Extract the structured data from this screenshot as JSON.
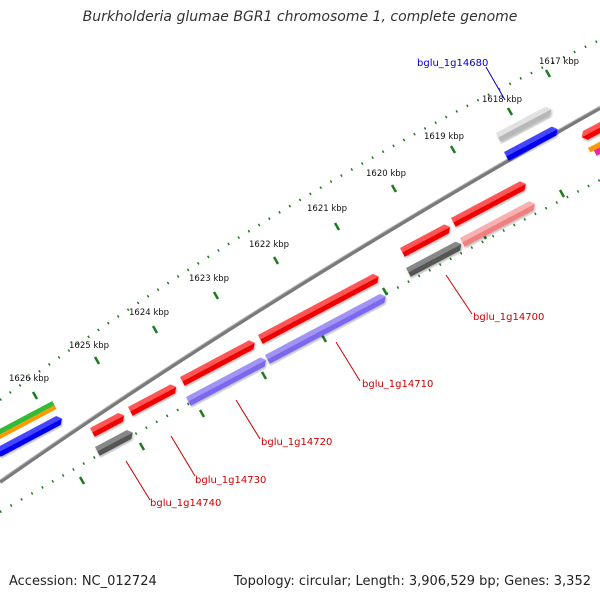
{
  "title": "Burkholderia glumae BGR1 chromosome 1, complete genome",
  "footer": {
    "accession": "Accession: NC_012724",
    "summary": "Topology: circular; Length: 3,906,529 bp; Genes: 3,352"
  },
  "colors": {
    "backbone": "#808080",
    "tick": "#1f7a1f",
    "label_red": "#cc0000",
    "label_blue": "#0000cc",
    "gene_red": "#ee0000",
    "gene_pink": "#f08080",
    "gene_blue": "#0000ee",
    "gene_slate": "#7b68ee",
    "gene_gray": "#555555",
    "gene_lightgray": "#b8b8b8",
    "gene_green": "#33bb33",
    "gene_orange": "#ff9900",
    "gene_magenta": "#ee22aa"
  },
  "kbp_ticks": [
    "1617 kbp",
    "1618 kbp",
    "1619 kbp",
    "1620 kbp",
    "1621 kbp",
    "1622 kbp",
    "1623 kbp",
    "1624 kbp",
    "1625 kbp",
    "1626 kbp"
  ],
  "gene_labels": [
    "bglu_1g14680",
    "bglu_1g14700",
    "bglu_1g14710",
    "bglu_1g14720",
    "bglu_1g14730",
    "bglu_1g14740"
  ]
}
